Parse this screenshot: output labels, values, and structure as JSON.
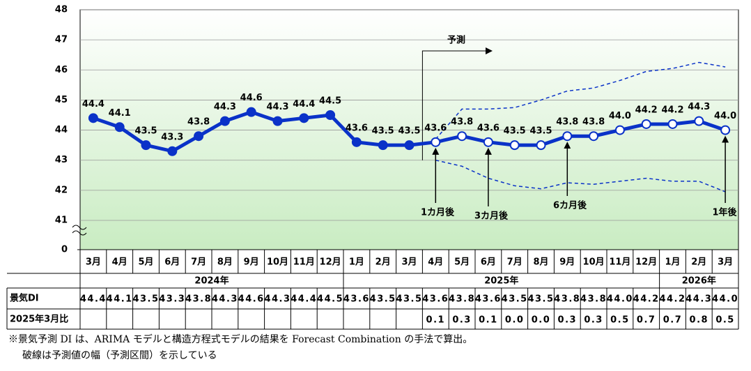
{
  "chart_data": {
    "type": "line",
    "categories": [
      "3月",
      "4月",
      "5月",
      "6月",
      "7月",
      "8月",
      "9月",
      "10月",
      "11月",
      "12月",
      "1月",
      "2月",
      "3月",
      "4月",
      "5月",
      "6月",
      "7月",
      "8月",
      "9月",
      "10月",
      "11月",
      "12月",
      "1月",
      "2月",
      "3月"
    ],
    "years": [
      "2024年",
      "2025年",
      "2026年"
    ],
    "values": [
      44.4,
      44.1,
      43.5,
      43.3,
      43.8,
      44.3,
      44.6,
      44.3,
      44.4,
      44.5,
      43.6,
      43.5,
      43.5,
      43.6,
      43.8,
      43.6,
      43.5,
      43.5,
      43.8,
      43.8,
      44.0,
      44.2,
      44.2,
      44.3,
      44.0
    ],
    "value_labels": [
      "44.4",
      "44.1",
      "43.5",
      "43.3",
      "43.8",
      "44.3",
      "44.6",
      "44.3",
      "44.4",
      "44.5",
      "43.6",
      "43.5",
      "43.5",
      "43.6",
      "43.8",
      "43.6",
      "43.5",
      "43.5",
      "43.8",
      "43.8",
      "44.0",
      "44.2",
      "44.2",
      "44.3",
      "44.0"
    ],
    "forecast_upper": [
      null,
      null,
      null,
      null,
      null,
      null,
      null,
      null,
      null,
      null,
      null,
      null,
      null,
      43.7,
      44.7,
      44.7,
      44.75,
      45.0,
      45.3,
      45.4,
      45.65,
      45.95,
      46.05,
      46.25,
      46.1
    ],
    "forecast_lower": [
      null,
      null,
      null,
      null,
      null,
      null,
      null,
      null,
      null,
      null,
      null,
      null,
      null,
      43.0,
      42.8,
      42.4,
      42.15,
      42.05,
      42.25,
      42.2,
      42.3,
      42.4,
      42.3,
      42.3,
      41.95
    ],
    "color": "#0a32c8",
    "ylim": [
      41,
      48
    ],
    "yticks": [
      41,
      42,
      43,
      44,
      45,
      46,
      47,
      48
    ],
    "break_tick": 0,
    "grid": true,
    "forecast_label": "予測",
    "annotations": [
      "1カ月後",
      "3カ月後",
      "6カ月後",
      "1年後"
    ],
    "table": {
      "row_labels": [
        "景気DI",
        "2025年3月比"
      ],
      "diff": [
        null,
        null,
        null,
        null,
        null,
        null,
        null,
        null,
        null,
        null,
        null,
        null,
        null,
        "0.1",
        "0.3",
        "0.1",
        "0.0",
        "0.0",
        "0.3",
        "0.3",
        "0.5",
        "0.7",
        "0.7",
        "0.8",
        "0.5"
      ]
    },
    "notes": [
      "※景気予測 DI は、ARIMA モデルと構造方程式モデルの結果を Forecast Combination の手法で算出。",
      "破線は予測値の幅（予測区間）を示している"
    ]
  }
}
